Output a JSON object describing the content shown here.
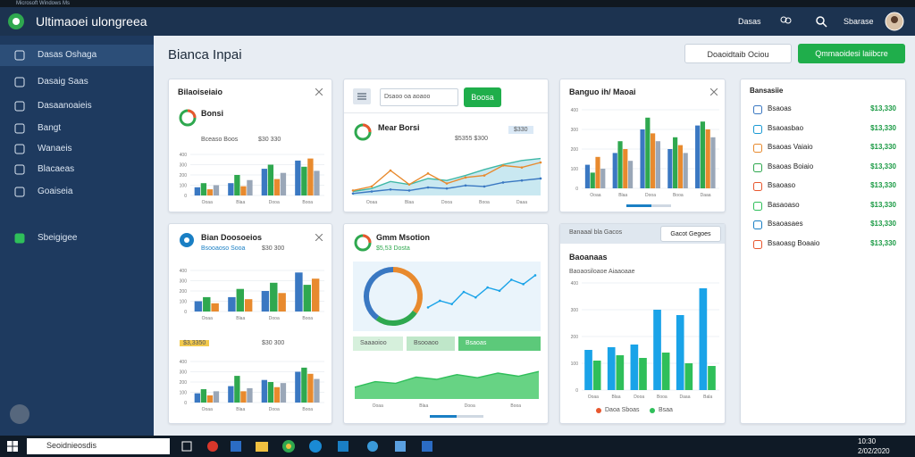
{
  "window": {
    "caption": "Microsoft Windows Ms"
  },
  "header": {
    "title": "Ultimaoei ulongreea",
    "link": "Dasas",
    "user": "Sbarase"
  },
  "sidebar": {
    "items": [
      "Dasas Oshaga",
      "Dasaig Saas",
      "Dasaanoaieis",
      "Bangt",
      "Wanaeis",
      "Blacaeas",
      "Goaiseia",
      "Sbeigigee"
    ]
  },
  "page": {
    "title": "Bianca Inpai",
    "buttons": [
      "Doaoidtaib Ociou",
      "Qmmaoidesi laiibcre"
    ]
  },
  "cards": [
    {
      "title": "Bilaoiseiaio",
      "subtitle": "Bonsi",
      "note": "Bceaso Boos",
      "amount": "$30 330",
      "charts": [
        {
          "type": "bar",
          "ylim": [
            0,
            400
          ],
          "yticks": [
            0,
            100,
            200,
            300,
            400
          ],
          "categories": [
            "Ooaa",
            "Blaa",
            "Dooa",
            "Booa"
          ],
          "series": [
            {
              "color": "#3a78c2",
              "values": [
                80,
                120,
                260,
                340
              ]
            },
            {
              "color": "#2fa84f",
              "values": [
                120,
                200,
                300,
                280
              ]
            },
            {
              "color": "#e88a2e",
              "values": [
                60,
                90,
                160,
                360
              ]
            },
            {
              "color": "#9aa7b8",
              "values": [
                100,
                150,
                220,
                240
              ]
            }
          ]
        }
      ]
    },
    {
      "title": "Bian Doosoeios",
      "subtitle": "Bsooaoso Sooa",
      "amount": "$30 300",
      "legend": [
        "$3,3350",
        "$30 300"
      ],
      "charts": [
        {
          "type": "bar",
          "ylim": [
            0,
            400
          ],
          "yticks": [
            0,
            100,
            200,
            300,
            400
          ],
          "categories": [
            "Ooaa",
            "Blaa",
            "Dooa",
            "Booa"
          ],
          "series": [
            {
              "color": "#3a78c2",
              "values": [
                100,
                140,
                200,
                380
              ]
            },
            {
              "color": "#2fa84f",
              "values": [
                140,
                220,
                280,
                260
              ]
            },
            {
              "color": "#e88a2e",
              "values": [
                80,
                120,
                180,
                320
              ]
            }
          ]
        },
        {
          "type": "bar",
          "ylim": [
            0,
            400
          ],
          "yticks": [
            0,
            100,
            200,
            300,
            400
          ],
          "categories": [
            "Ooaa",
            "Blaa",
            "Dooa",
            "Booa"
          ],
          "series": [
            {
              "color": "#3a78c2",
              "values": [
                90,
                160,
                220,
                300
              ]
            },
            {
              "color": "#2fa84f",
              "values": [
                130,
                260,
                200,
                340
              ]
            },
            {
              "color": "#e88a2e",
              "values": [
                70,
                110,
                150,
                280
              ]
            },
            {
              "color": "#9aa7b8",
              "values": [
                110,
                140,
                190,
                230
              ]
            }
          ]
        }
      ]
    },
    {
      "search": "Dsaoo oa aoaoo",
      "button": "Boosa",
      "subtitle": "Mear Borsi",
      "amount": "$5355 $300",
      "badge": "$330",
      "charts": [
        {
          "type": "line",
          "ylim": [
            0,
            100
          ],
          "categories": [
            "Ooaa",
            "Blaa",
            "Dooa",
            "Booa",
            "Daaa"
          ],
          "series": [
            {
              "color": "#3fb8a6",
              "fill": "#bfe4ef",
              "values": [
                8,
                14,
                28,
                22,
                34,
                30,
                40,
                52,
                62,
                70,
                74
              ]
            },
            {
              "color": "#e88a2e",
              "values": [
                10,
                18,
                50,
                22,
                44,
                24,
                36,
                40,
                60,
                56,
                66
              ]
            },
            {
              "color": "#3a78c2",
              "values": [
                4,
                8,
                12,
                10,
                16,
                14,
                20,
                18,
                26,
                30,
                34
              ]
            }
          ]
        }
      ]
    },
    {
      "subtitle": "Gmm Msotion",
      "amount": "$5,53 Dosta",
      "pills": [
        "Saaaoioo",
        "Bsooaoo",
        "Bsaoas"
      ],
      "charts": [
        {
          "type": "donut",
          "values": [
            35,
            25,
            40
          ],
          "colors": [
            "#e88a2e",
            "#2fa84f",
            "#3a78c2"
          ]
        },
        {
          "type": "line",
          "ylim": [
            0,
            100
          ],
          "series": [
            {
              "color": "#1aa3e8",
              "values": [
                30,
                42,
                36,
                58,
                48,
                66,
                60,
                80,
                72,
                88
              ]
            }
          ]
        },
        {
          "type": "line",
          "ylim": [
            0,
            100
          ],
          "categories": [
            "Ooaa",
            "Blaa",
            "Dooa",
            "Booa"
          ],
          "series": [
            {
              "color": "#2fbf5a",
              "fill": "#4ccb6e",
              "values": [
                30,
                44,
                40,
                56,
                50,
                62,
                54,
                66,
                58,
                70
              ]
            }
          ]
        }
      ]
    },
    {
      "title": "Banguo ih/ Maoai",
      "charts": [
        {
          "type": "bar",
          "ylim": [
            0,
            400
          ],
          "yticks": [
            0,
            100,
            200,
            300,
            400
          ],
          "categories": [
            "Ooaa",
            "Blaa",
            "Dooa",
            "Booa",
            "Daaa"
          ],
          "series": [
            {
              "color": "#3a78c2",
              "values": [
                120,
                180,
                300,
                200,
                320
              ]
            },
            {
              "color": "#2fa84f",
              "values": [
                80,
                240,
                360,
                260,
                340
              ]
            },
            {
              "color": "#e88a2e",
              "values": [
                160,
                200,
                280,
                220,
                300
              ]
            },
            {
              "color": "#9aa7b8",
              "values": [
                100,
                140,
                240,
                180,
                260
              ]
            }
          ]
        }
      ]
    },
    {
      "strip": "Banaaal bla Gacos",
      "button": "Gacot Gegoes",
      "title": "Baoanaas",
      "subtitle": "Baoaosiloaoe Aiaaoaae",
      "legend": [
        "Daoa Sboas",
        "Bsaa"
      ],
      "charts": [
        {
          "type": "bar",
          "ylim": [
            0,
            400
          ],
          "yticks": [
            0,
            100,
            200,
            300,
            400
          ],
          "categories": [
            "Ooaa",
            "Blaa",
            "Dooa",
            "Booa",
            "Daaa",
            "Bala"
          ],
          "series": [
            {
              "color": "#1aa3e8",
              "values": [
                150,
                160,
                170,
                300,
                280,
                380
              ]
            },
            {
              "color": "#2fbf5a",
              "values": [
                110,
                130,
                120,
                140,
                100,
                90
              ]
            }
          ]
        }
      ]
    }
  ],
  "list": {
    "title": "Bansasiie",
    "rows": [
      {
        "name": "Bsaoas",
        "value": "$13,330"
      },
      {
        "name": "Bsaoasbao",
        "value": "$13,330"
      },
      {
        "name": "Bsaoas Vaiaio",
        "value": "$13,330"
      },
      {
        "name": "Bsaoas Boiaio",
        "value": "$13,330"
      },
      {
        "name": "Bsaoaso",
        "value": "$13,330"
      },
      {
        "name": "Basaoaso",
        "value": "$13,330"
      },
      {
        "name": "Bsaoasaes",
        "value": "$13,330"
      },
      {
        "name": "Bsaoasg Boaaio",
        "value": "$13,330"
      }
    ]
  },
  "taskbar": {
    "search": "Seoidnieosdis",
    "time": "10:30",
    "date": "2/02/2020"
  }
}
